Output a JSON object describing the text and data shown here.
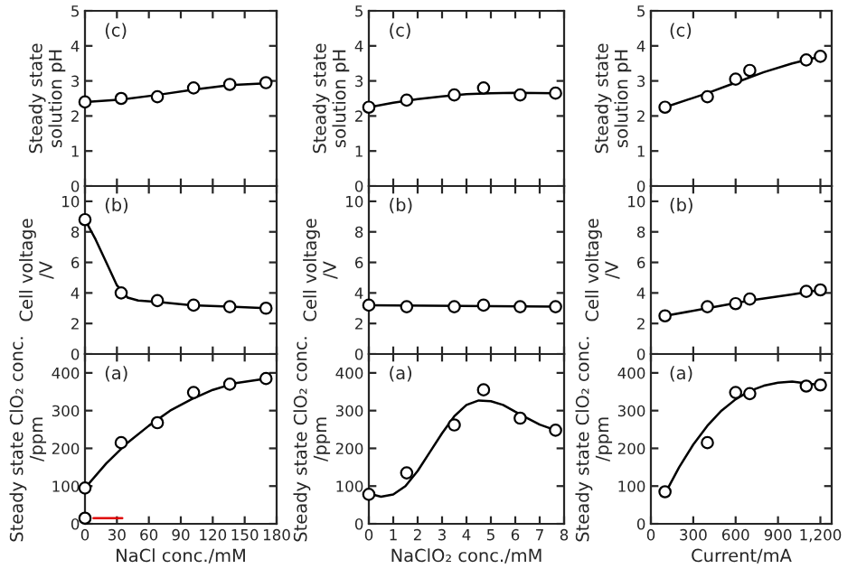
{
  "chart_data": [
    {
      "type": "scatter",
      "ylabel": "Steady state\nsolution pH",
      "annotations": [
        "(c)"
      ],
      "xlim": [
        0,
        180
      ],
      "xticks": [
        0,
        30,
        60,
        90,
        120,
        150,
        180
      ],
      "ylim": [
        0,
        5
      ],
      "yticks": [
        0,
        1,
        2,
        3,
        4,
        5
      ],
      "tick_labels": "y",
      "x": [
        0,
        34,
        68,
        102,
        136,
        170
      ],
      "series": [
        {
          "marker": "circle",
          "color": "#000000",
          "values": [
            2.4,
            2.5,
            2.55,
            2.8,
            2.9,
            2.95
          ]
        },
        {
          "type": "line",
          "marker": "none",
          "color": "#000000",
          "x": [
            0,
            34,
            68,
            102,
            136,
            170
          ],
          "values": [
            2.4,
            2.47,
            2.6,
            2.75,
            2.88,
            2.93
          ]
        }
      ]
    },
    {
      "type": "scatter",
      "annotations": [
        "(c)"
      ],
      "xlim": [
        0,
        8
      ],
      "xticks": [
        0,
        1,
        2,
        3,
        4,
        5,
        6,
        7,
        8
      ],
      "ylim": [
        0,
        5
      ],
      "yticks": [
        0,
        1,
        2,
        3,
        4,
        5
      ],
      "tick_labels": "y",
      "ylabel": "Steady state\nsolution pH",
      "x": [
        0,
        1.55,
        3.5,
        4.7,
        6.2,
        7.65
      ],
      "series": [
        {
          "marker": "circle",
          "color": "#000000",
          "values": [
            2.25,
            2.45,
            2.6,
            2.8,
            2.6,
            2.65
          ]
        },
        {
          "type": "line",
          "marker": "none",
          "color": "#000000",
          "x": [
            0,
            1,
            2,
            3,
            4,
            5,
            6,
            7.65
          ],
          "values": [
            2.25,
            2.38,
            2.48,
            2.56,
            2.62,
            2.65,
            2.66,
            2.65
          ]
        }
      ]
    },
    {
      "type": "scatter",
      "annotations": [
        "(c)"
      ],
      "xlim": [
        0,
        1280
      ],
      "xticks": [
        0,
        300,
        600,
        900,
        1200
      ],
      "ylim": [
        0,
        5
      ],
      "yticks": [
        0,
        1,
        2,
        3,
        4,
        5
      ],
      "tick_labels": "y",
      "ylabel": "Steady state\nsolution pH",
      "x": [
        100,
        400,
        600,
        700,
        1100,
        1200
      ],
      "series": [
        {
          "marker": "circle",
          "color": "#000000",
          "values": [
            2.25,
            2.55,
            3.05,
            3.3,
            3.6,
            3.7
          ]
        },
        {
          "type": "line",
          "marker": "none",
          "color": "#000000",
          "x": [
            100,
            400,
            600,
            800,
            1000,
            1200
          ],
          "values": [
            2.25,
            2.65,
            2.95,
            3.25,
            3.5,
            3.7
          ]
        }
      ]
    },
    {
      "type": "scatter",
      "ylabel": "Cell voltage\n/V",
      "annotations": [
        "(b)"
      ],
      "xlim": [
        0,
        180
      ],
      "xticks": [
        0,
        30,
        60,
        90,
        120,
        150,
        180
      ],
      "ylim": [
        0,
        11
      ],
      "yticks": [
        0,
        2,
        4,
        6,
        8,
        10
      ],
      "tick_labels": "y",
      "x": [
        0,
        34,
        68,
        102,
        136,
        170
      ],
      "series": [
        {
          "marker": "circle",
          "color": "#000000",
          "values": [
            8.8,
            4.0,
            3.5,
            3.2,
            3.1,
            3.0
          ]
        },
        {
          "type": "line",
          "marker": "none",
          "color": "#000000",
          "x": [
            0,
            10,
            20,
            30,
            40,
            50,
            70,
            100,
            136,
            170
          ],
          "values": [
            8.8,
            7.5,
            6.0,
            4.5,
            3.7,
            3.5,
            3.4,
            3.2,
            3.1,
            3.0
          ]
        }
      ]
    },
    {
      "type": "scatter",
      "ylabel": "Cell voltage\n/V",
      "annotations": [
        "(b)"
      ],
      "xlim": [
        0,
        8
      ],
      "xticks": [
        0,
        1,
        2,
        3,
        4,
        5,
        6,
        7,
        8
      ],
      "ylim": [
        0,
        11
      ],
      "yticks": [
        0,
        2,
        4,
        6,
        8,
        10
      ],
      "tick_labels": "y",
      "x": [
        0,
        1.55,
        3.5,
        4.7,
        6.2,
        7.65
      ],
      "series": [
        {
          "marker": "circle",
          "color": "#000000",
          "values": [
            3.2,
            3.1,
            3.1,
            3.2,
            3.1,
            3.1
          ]
        },
        {
          "type": "line",
          "marker": "none",
          "color": "#000000",
          "x": [
            0,
            7.65
          ],
          "values": [
            3.2,
            3.1
          ]
        }
      ]
    },
    {
      "type": "scatter",
      "ylabel": "Cell voltage\n/V",
      "annotations": [
        "(b)"
      ],
      "xlim": [
        0,
        1280
      ],
      "xticks": [
        0,
        300,
        600,
        900,
        1200
      ],
      "ylim": [
        0,
        11
      ],
      "yticks": [
        0,
        2,
        4,
        6,
        8,
        10
      ],
      "tick_labels": "y",
      "x": [
        100,
        400,
        600,
        700,
        1100,
        1200
      ],
      "series": [
        {
          "marker": "circle",
          "color": "#000000",
          "values": [
            2.5,
            3.1,
            3.3,
            3.6,
            4.1,
            4.2
          ]
        },
        {
          "type": "line",
          "marker": "none",
          "color": "#000000",
          "x": [
            100,
            400,
            700,
            1000,
            1200
          ],
          "values": [
            2.5,
            3.0,
            3.5,
            3.9,
            4.2
          ]
        }
      ]
    },
    {
      "type": "scatter",
      "ylabel": "Steady state ClO₂ conc.\n/ppm",
      "xlabel": "NaCl conc./mM",
      "annotations": [
        "(a)"
      ],
      "xlim": [
        0,
        180
      ],
      "xticks": [
        0,
        30,
        60,
        90,
        120,
        150,
        180
      ],
      "ylim": [
        0,
        450
      ],
      "yticks": [
        0,
        100,
        200,
        300,
        400
      ],
      "x": [
        0,
        34,
        68,
        102,
        136,
        170
      ],
      "series": [
        {
          "marker": "circle",
          "color": "#000000",
          "values": [
            95,
            215,
            268,
            348,
            370,
            385
          ]
        },
        {
          "type": "line",
          "marker": "none",
          "color": "#000000",
          "x": [
            0,
            20,
            40,
            60,
            80,
            100,
            120,
            140,
            170
          ],
          "values": [
            95,
            160,
            215,
            260,
            300,
            330,
            355,
            372,
            385
          ]
        },
        {
          "marker": "circle",
          "color": "#000000",
          "x": [
            0
          ],
          "values": [
            15
          ]
        },
        {
          "type": "line",
          "marker": "none",
          "color": "#e00000",
          "x": [
            35,
            8
          ],
          "values": [
            15,
            15
          ]
        }
      ]
    },
    {
      "type": "scatter",
      "ylabel": "Steady state ClO₂ conc.\n/ppm",
      "xlabel": "NaClO₂ conc./mM",
      "annotations": [
        "(a)"
      ],
      "xlim": [
        0,
        8
      ],
      "xticks": [
        0,
        1,
        2,
        3,
        4,
        5,
        6,
        7,
        8
      ],
      "ylim": [
        0,
        450
      ],
      "yticks": [
        0,
        100,
        200,
        300,
        400
      ],
      "x": [
        0,
        1.55,
        3.5,
        4.7,
        6.2,
        7.65
      ],
      "series": [
        {
          "marker": "circle",
          "color": "#000000",
          "values": [
            78,
            135,
            262,
            355,
            280,
            248
          ]
        },
        {
          "type": "line",
          "marker": "none",
          "color": "#000000",
          "x": [
            0,
            0.5,
            1,
            1.5,
            2,
            2.5,
            3,
            3.5,
            4,
            4.5,
            5,
            5.5,
            6,
            6.5,
            7,
            7.65
          ],
          "values": [
            80,
            72,
            78,
            100,
            140,
            190,
            240,
            285,
            315,
            327,
            325,
            315,
            297,
            280,
            263,
            248
          ]
        }
      ]
    },
    {
      "type": "scatter",
      "ylabel": "Steady state ClO₂ conc.\n/ppm",
      "xlabel": "Current/mA",
      "annotations": [
        "(a)"
      ],
      "xlim": [
        0,
        1280
      ],
      "xticks": [
        0,
        300,
        600,
        900,
        {
          "value": 1200,
          "label": "1,200"
        }
      ],
      "ylim": [
        0,
        450
      ],
      "yticks": [
        0,
        100,
        200,
        300,
        400
      ],
      "x": [
        100,
        400,
        600,
        700,
        1100,
        1200
      ],
      "series": [
        {
          "marker": "circle",
          "color": "#000000",
          "values": [
            85,
            215,
            348,
            345,
            365,
            368
          ]
        },
        {
          "type": "line",
          "marker": "none",
          "color": "#000000",
          "x": [
            100,
            200,
            300,
            400,
            500,
            600,
            700,
            800,
            900,
            1000,
            1100,
            1200
          ],
          "values": [
            80,
            150,
            210,
            260,
            300,
            330,
            352,
            366,
            374,
            377,
            372,
            368
          ]
        }
      ]
    }
  ]
}
